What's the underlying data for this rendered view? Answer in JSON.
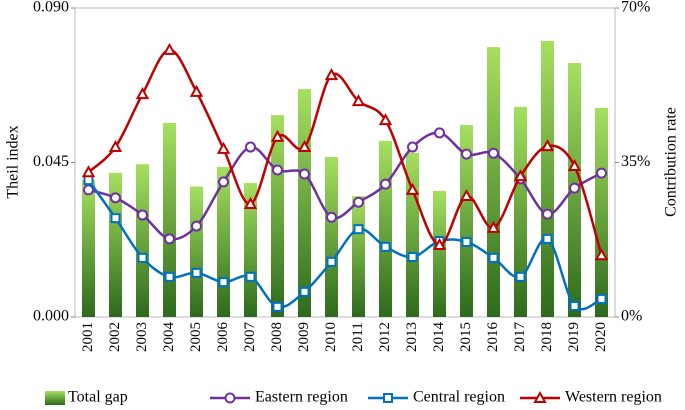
{
  "chart_data": {
    "type": "bar_line",
    "y_label": "Theil index",
    "y2_label": "Contribution rate",
    "categories": [
      "2001",
      "2002",
      "2003",
      "2004",
      "2005",
      "2006",
      "2007",
      "2008",
      "2009",
      "2010",
      "2011",
      "2012",
      "2013",
      "2014",
      "2015",
      "2016",
      "2017",
      "2018",
      "2019",
      "2020"
    ],
    "ylim": [
      0,
      0.09
    ],
    "yticks": [
      {
        "value": 0,
        "label": "0.000"
      },
      {
        "value": 0.045,
        "label": "0.045"
      },
      {
        "value": 0.09,
        "label": "0.090"
      }
    ],
    "y2lim": [
      0,
      70
    ],
    "y2ticks": [
      {
        "value": 0,
        "label": "0%"
      },
      {
        "value": 35,
        "label": "35%"
      },
      {
        "value": 70,
        "label": "70%"
      }
    ],
    "series": [
      {
        "name": "Total gap",
        "type": "bar",
        "color": "#5fa83a",
        "values": [
          0.04,
          0.042,
          0.0445,
          0.0565,
          0.038,
          0.0437,
          0.039,
          0.0588,
          0.0664,
          0.0466,
          0.0352,
          0.0513,
          0.0478,
          0.0367,
          0.0559,
          0.0786,
          0.0612,
          0.0804,
          0.074,
          0.0609
        ]
      },
      {
        "name": "Eastern region",
        "type": "line",
        "marker": "circle",
        "axis": "y2",
        "color": "#7030a0",
        "values": [
          28.8,
          27.0,
          23.1,
          17.7,
          20.6,
          30.6,
          38.5,
          33.3,
          32.4,
          22.6,
          26.0,
          30.1,
          38.5,
          41.7,
          36.9,
          37.1,
          31.3,
          23.3,
          29.2,
          32.6
        ]
      },
      {
        "name": "Central region",
        "type": "line",
        "marker": "square",
        "axis": "y2",
        "color": "#0070c0",
        "values": [
          31.0,
          22.4,
          13.4,
          9.1,
          10.0,
          7.9,
          9.1,
          2.3,
          5.7,
          12.5,
          19.9,
          15.9,
          13.6,
          17.2,
          17.0,
          13.4,
          9.1,
          17.7,
          2.5,
          4.1
        ]
      },
      {
        "name": "Western region",
        "type": "line",
        "marker": "triangle",
        "axis": "y2",
        "color": "#c00000",
        "values": [
          32.8,
          38.5,
          50.5,
          60.5,
          51.0,
          38.1,
          25.6,
          40.8,
          38.5,
          54.8,
          48.9,
          44.6,
          28.8,
          16.3,
          27.4,
          20.2,
          31.9,
          38.7,
          34.2,
          14.0
        ]
      }
    ]
  }
}
